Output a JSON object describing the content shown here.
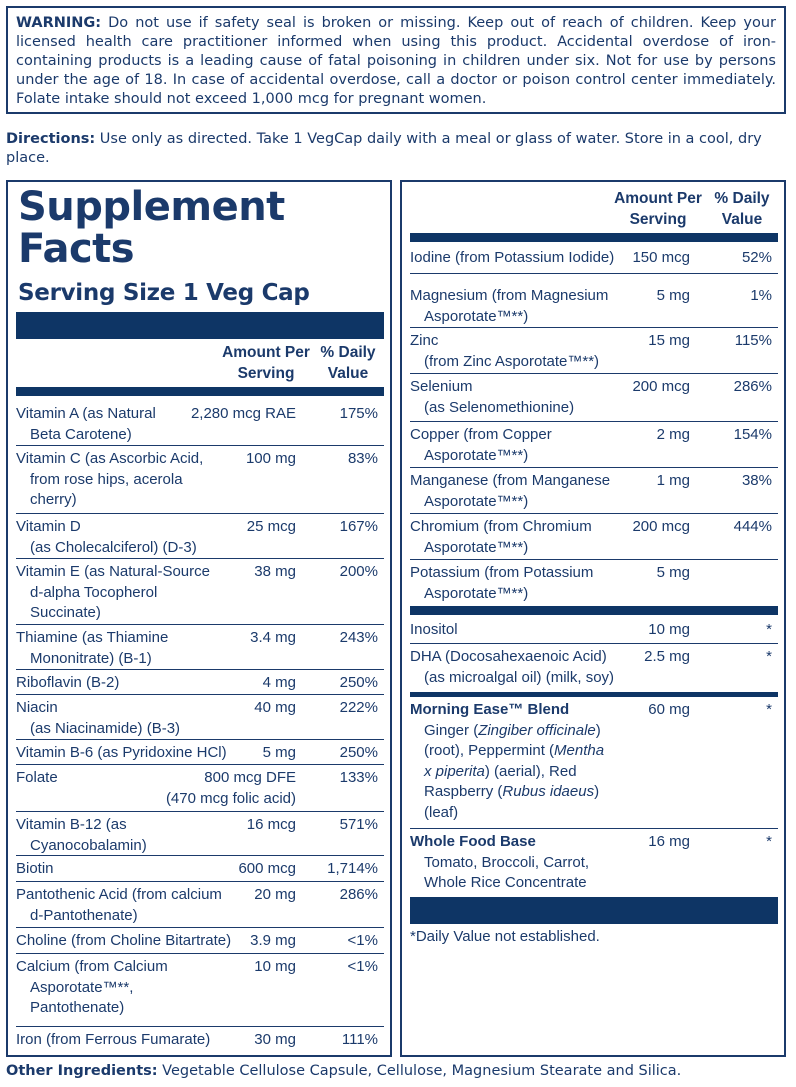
{
  "warning": {
    "label": "WARNING:",
    "text": " Do not use if safety seal is broken or missing. Keep out of reach of children. Keep your licensed health care practitioner informed when using this product. Accidental overdose of iron-containing products is a leading cause of fatal poisoning in children under six. Not for use by persons under the age of 18. In case of accidental overdose, call a doctor or poison control center immediately. Folate intake should not exceed 1,000 mcg for pregnant women."
  },
  "directions": {
    "label": "Directions:",
    "text": " Use only as directed. Take 1 VegCap daily with a meal or glass of water. Store in a cool, dry place."
  },
  "facts": {
    "title_line1": "Supplement",
    "title_line2": "Facts",
    "serving_size": "Serving Size 1 Veg Cap",
    "col_amount": "Amount Per Serving",
    "col_dv": "% Daily Value"
  },
  "left_rows": [
    {
      "name": "Vitamin A (as Natural",
      "name2": "Beta Carotene)",
      "amount": "2,280 mcg RAE",
      "dv": "175%"
    },
    {
      "name": "Vitamin C (as Ascorbic Acid,",
      "name2": "from rose hips, acerola",
      "name3": "cherry)",
      "amount": "100 mg",
      "dv": "83%"
    },
    {
      "name": "Vitamin D",
      "name2": "(as Cholecalciferol) (D-3)",
      "amount": "25 mcg",
      "dv": "167%"
    },
    {
      "name": "Vitamin E (as Natural-Source",
      "name2": "d-alpha Tocopherol",
      "name3": "Succinate)",
      "amount": "38 mg",
      "dv": "200%"
    },
    {
      "name": "Thiamine (as Thiamine",
      "name2": "Mononitrate) (B-1)",
      "amount": "3.4 mg",
      "dv": "243%"
    },
    {
      "name": "Riboflavin (B-2)",
      "amount": "4 mg",
      "dv": "250%"
    },
    {
      "name": "Niacin",
      "name2": "(as Niacinamide) (B-3)",
      "amount": "40 mg",
      "dv": "222%"
    },
    {
      "name": "Vitamin B-6 (as Pyridoxine HCl)",
      "amount": "5 mg",
      "dv": "250%"
    },
    {
      "name": "Folate",
      "amount": "800 mcg DFE",
      "amount2": "(470 mcg folic acid)",
      "dv": "133%"
    },
    {
      "name": "Vitamin B-12 (as",
      "name2": "Cyanocobalamin)",
      "amount": "16 mcg",
      "dv": "571%"
    },
    {
      "name": "Biotin",
      "amount": "600 mcg",
      "dv": "1,714%"
    },
    {
      "name": "Pantothenic Acid (from calcium",
      "name2": "d-Pantothenate)",
      "amount": "20 mg",
      "dv": "286%"
    },
    {
      "name": "Choline (from Choline Bitartrate)",
      "amount": "3.9 mg",
      "dv": "<1%"
    },
    {
      "name": "Calcium (from Calcium",
      "name2": "Asporotate™**,",
      "name3": "Pantothenate)",
      "amount": "10 mg",
      "dv": "<1%"
    },
    {
      "name": "Iron (from Ferrous Fumarate)",
      "amount": "30 mg",
      "dv": "111%"
    }
  ],
  "right_rows": [
    {
      "name": "Iodine (from Potassium Iodide)",
      "amount": "150 mcg",
      "dv": "52%"
    },
    {
      "name": "Magnesium (from Magnesium",
      "name2": "Asporotate™**)",
      "amount": "5 mg",
      "dv": "1%"
    },
    {
      "name": "Zinc",
      "name2": "(from Zinc Asporotate™**)",
      "amount": "15 mg",
      "dv": "115%"
    },
    {
      "name": "Selenium",
      "name2": "(as Selenomethionine)",
      "amount": "200 mcg",
      "dv": "286%"
    },
    {
      "name": "Copper (from Copper",
      "name2": "Asporotate™**)",
      "amount": "2 mg",
      "dv": "154%"
    },
    {
      "name": "Manganese (from Manganese",
      "name2": "Asporotate™**)",
      "amount": "1 mg",
      "dv": "38%"
    },
    {
      "name": "Chromium (from Chromium",
      "name2": "Asporotate™**)",
      "amount": "200 mcg",
      "dv": "444%"
    },
    {
      "name": "Potassium (from Potassium",
      "name2": "Asporotate™**)",
      "amount": "5 mg",
      "dv": ""
    },
    {
      "name": "Inositol",
      "amount": "10 mg",
      "dv": "*"
    },
    {
      "name": "DHA (Docosahexaenoic Acid)",
      "name2": "(as microalgal oil) (milk, soy)",
      "amount": "2.5 mg",
      "dv": "*"
    }
  ],
  "blends": [
    {
      "title": "Morning Ease™ Blend",
      "amount": "60 mg",
      "dv": "*",
      "l1a": "Ginger (",
      "l1b": "Zingiber officinale",
      "l1c": ")",
      "l2a": "(root), Peppermint (",
      "l2b": "Mentha",
      "l3a": "x piperita",
      "l3b": ") (aerial), Red",
      "l4a": "Raspberry (",
      "l4b": "Rubus idaeus",
      "l4c": ")",
      "l5": "(leaf)"
    },
    {
      "title": "Whole Food Base",
      "amount": "16 mg",
      "dv": "*",
      "l1": "Tomato, Broccoli, Carrot,",
      "l2": "Whole Rice Concentrate"
    }
  ],
  "footnote": "*Daily Value not established.",
  "other_ingredients": {
    "label": "Other Ingredients:",
    "text": " Vegetable Cellulose Capsule, Cellulose, Magnesium Stearate and Silica."
  }
}
